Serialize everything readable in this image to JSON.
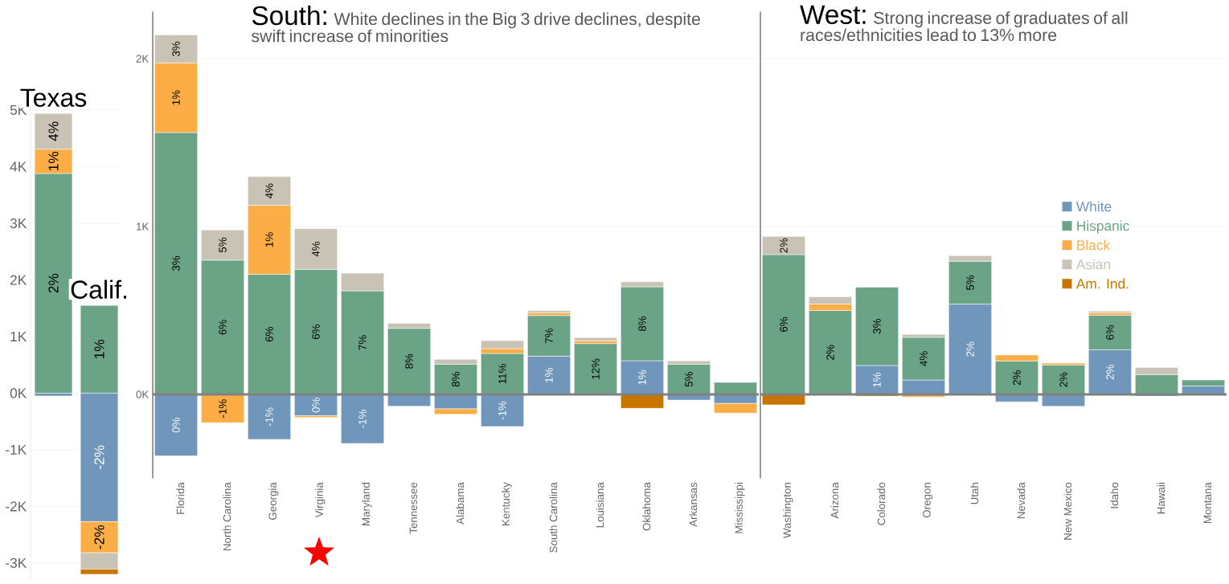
{
  "chart_data": [
    {
      "type": "bar",
      "stacked": true,
      "categories": [
        "Texas",
        "Calif."
      ],
      "tick_labels": "y",
      "grid": "y",
      "ylim": [
        -3300,
        5100
      ],
      "yticks": [
        {
          "value": -3000,
          "label": "-3K"
        },
        {
          "value": -2000,
          "label": "-2K"
        },
        {
          "value": -1000,
          "label": "-1K"
        },
        {
          "value": 0,
          "label": "0K"
        },
        {
          "value": 1000,
          "label": "1K"
        },
        {
          "value": 2000,
          "label": "2K"
        },
        {
          "value": 3000,
          "label": "3K"
        },
        {
          "value": 4000,
          "label": "4K"
        },
        {
          "value": 5000,
          "label": "5K"
        }
      ],
      "series": [
        {
          "color": "#7096bb",
          "values": [
            -50,
            -2270
          ]
        },
        {
          "color": "#6ba386",
          "values": [
            3880,
            1550
          ]
        },
        {
          "color": "#fdad45",
          "values": [
            430,
            -550
          ]
        },
        {
          "color": "#c9c3b6",
          "values": [
            630,
            -290
          ]
        },
        {
          "color": "#c87500",
          "values": [
            null,
            -90
          ]
        }
      ],
      "annotations": [
        "2%",
        "1%",
        "4%",
        "1%",
        "-2%",
        "-2%"
      ]
    },
    {
      "type": "bar",
      "stacked": true,
      "title": "South:",
      "subtitle": "White declines in the Big 3 drive declines, despite swift increase of minorities",
      "categories": [
        "Florida",
        "North Carolina",
        "Georgia",
        "Virginia",
        "Maryland",
        "Tennessee",
        "Alabama",
        "Kentucky",
        "South Carolina",
        "Louisiana",
        "Oklahoma",
        "Arkansas",
        "Mississippi"
      ],
      "grid": "y",
      "ylim": [
        -500,
        2280
      ],
      "yticks": [
        {
          "value": 0,
          "label": "0K"
        },
        {
          "value": 1000,
          "label": "1K"
        },
        {
          "value": 2000,
          "label": "2K"
        }
      ],
      "ref_lines": [
        {
          "axis": "y",
          "value": 0,
          "color": "#808080"
        }
      ],
      "series": [
        {
          "color": "#7096bb",
          "values": [
            -366,
            null,
            -268,
            -127,
            -292,
            -70,
            -86,
            -191,
            228,
            null,
            201,
            -34,
            -54
          ]
        },
        {
          "color": "#6ba386",
          "values": [
            1560,
            800,
            716,
            745,
            617,
            394,
            180,
            244,
            242,
            303,
            440,
            180,
            72
          ]
        },
        {
          "color": "#fdad45",
          "values": [
            415,
            -169,
            410,
            -10,
            null,
            null,
            -32,
            29,
            16,
            16,
            null,
            null,
            -57
          ]
        },
        {
          "color": "#c9c3b6",
          "values": [
            166,
            180,
            172,
            242,
            105,
            30,
            29,
            47,
            13,
            19,
            30,
            20,
            null
          ]
        },
        {
          "color": "#c87500",
          "values": [
            null,
            null,
            null,
            null,
            null,
            null,
            null,
            null,
            null,
            null,
            -83,
            null,
            null
          ]
        }
      ],
      "annotations": [
        "0%",
        "3%",
        "1%",
        "3%",
        "6%",
        "-1%",
        "5%",
        "-1%",
        "6%",
        "1%",
        "4%",
        "0%",
        "6%",
        "4%",
        "-1%",
        "7%",
        "8%",
        "8%",
        "-1%",
        "11%",
        "1%",
        "7%",
        "12%",
        "1%",
        "8%",
        "5%"
      ]
    },
    {
      "type": "bar",
      "stacked": true,
      "title": "West:",
      "subtitle": "Strong increase of graduates of all races/ethnicities lead to 13% more",
      "categories": [
        "Washington",
        "Arizona",
        "Colorado",
        "Oregon",
        "Utah",
        "Nevada",
        "New Mexico",
        "Idaho",
        "Hawaii",
        "Montana"
      ],
      "grid": "y",
      "tick_labels": "x",
      "legend": "right",
      "ylim": [
        -500,
        2280
      ],
      "yticks": [
        0,
        1000,
        2000
      ],
      "ref_lines": [
        {
          "axis": "y",
          "value": 0,
          "color": "#808080"
        }
      ],
      "series": [
        {
          "name": "White",
          "color": "#7096bb",
          "values": [
            null,
            null,
            172,
            86,
            538,
            -44,
            -71,
            266,
            -10,
            50
          ]
        },
        {
          "name": "Hispanic",
          "color": "#6ba386",
          "values": [
            833,
            500,
            467,
            254,
            255,
            199,
            176,
            206,
            118,
            36
          ]
        },
        {
          "name": "Black",
          "color": "#fdad45",
          "values": [
            null,
            38,
            null,
            -15,
            null,
            36,
            11,
            15,
            null,
            null
          ]
        },
        {
          "name": "Asian",
          "color": "#c9c3b6",
          "values": [
            108,
            43,
            null,
            18,
            33,
            null,
            null,
            9,
            42,
            null
          ]
        },
        {
          "name": "Am. Ind.",
          "color": "#c87500",
          "values": [
            -62,
            null,
            -10,
            null,
            null,
            null,
            null,
            null,
            null,
            null
          ]
        }
      ],
      "annotations": [
        "6%",
        "2%",
        "2%",
        "1%",
        "3%",
        "4%",
        "2%",
        "5%",
        "2%",
        "2%",
        "2%",
        "6%"
      ]
    }
  ]
}
